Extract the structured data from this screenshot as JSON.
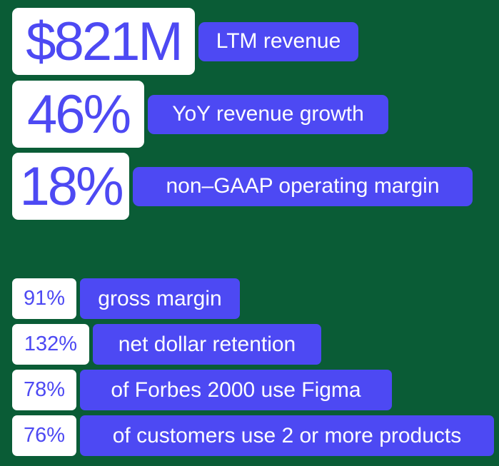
{
  "colors": {
    "background": "#0a5c36",
    "number_bg": "#ffffff",
    "number_text": "#4d49f3",
    "label_bg": "#4d49f3",
    "label_text": "#ffffff"
  },
  "big_stats": [
    {
      "value": "$821M",
      "label": "LTM revenue"
    },
    {
      "value": "46%",
      "label": "YoY revenue growth"
    },
    {
      "value": "18%",
      "label": "non–GAAP operating margin"
    }
  ],
  "small_stats": [
    {
      "value": "91%",
      "label": "gross margin"
    },
    {
      "value": "132%",
      "label": "net dollar retention"
    },
    {
      "value": "78%",
      "label": "of Forbes 2000 use Figma"
    },
    {
      "value": "76%",
      "label": "of customers use 2 or more products"
    }
  ]
}
